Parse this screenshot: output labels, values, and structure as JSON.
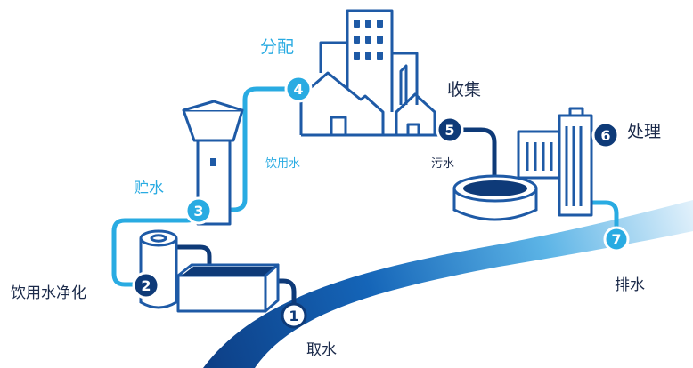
{
  "steps": [
    {
      "number": "1",
      "label": "取水"
    },
    {
      "number": "2",
      "label": "饮用水净化"
    },
    {
      "number": "3",
      "label": "贮水"
    },
    {
      "number": "4",
      "label": "分配"
    },
    {
      "number": "5",
      "label": "收集"
    },
    {
      "number": "6",
      "label": "处理"
    },
    {
      "number": "7",
      "label": "排水"
    }
  ],
  "flow_labels": {
    "drinking_water": "饮用水",
    "sewage": "污水"
  },
  "colors": {
    "outline": "#1e5aa6",
    "pipe_clean": "#29abe2",
    "pipe_waste": "#0e3a78",
    "river_dark": "#0d3f86",
    "river_light": "#d9eefb",
    "badge_dark": "#0e3a78",
    "text_dark": "#1b2a4a"
  }
}
